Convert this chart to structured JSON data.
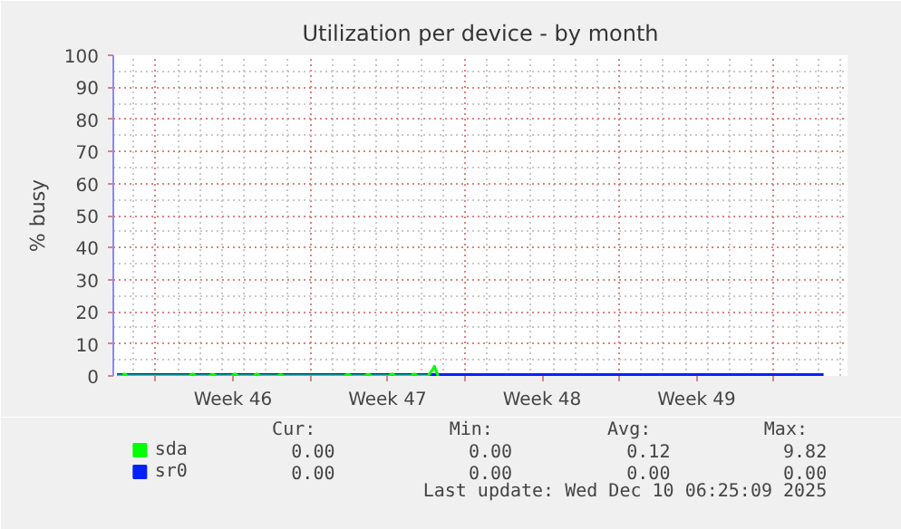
{
  "chart_data": {
    "type": "line",
    "title": "Utilization per device - by month",
    "ylabel": "% busy",
    "xlim": [
      "2025-11-08T02:00",
      "2025-12-11T08:00"
    ],
    "xticks": [
      {
        "value": "2025-11-10",
        "label": null
      },
      {
        "value": "2025-11-13T12:00",
        "label": "Week 46"
      },
      {
        "value": "2025-11-17",
        "label": null
      },
      {
        "value": "2025-11-20T12:00",
        "label": "Week 47"
      },
      {
        "value": "2025-11-24",
        "label": null
      },
      {
        "value": "2025-11-27T12:00",
        "label": "Week 48"
      },
      {
        "value": "2025-12-01",
        "label": null
      },
      {
        "value": "2025-12-04T12:00",
        "label": "Week 49"
      },
      {
        "value": "2025-12-08",
        "label": null
      }
    ],
    "ylim": [
      0,
      100
    ],
    "yticks": [
      0,
      10,
      20,
      30,
      40,
      50,
      60,
      70,
      80,
      90,
      100
    ],
    "grid": true,
    "legend": "bottom left",
    "series": [
      {
        "name": "sda",
        "color": "#00ff00",
        "x": [
          "2025-11-08T06:00",
          "2025-11-08T12:00",
          "2025-11-08T14:00",
          "2025-11-08T18:00",
          "2025-11-11T12:00",
          "2025-11-11T16:00",
          "2025-11-11T20:00",
          "2025-11-12T10:00",
          "2025-11-12T14:00",
          "2025-11-12T18:00",
          "2025-11-13T10:00",
          "2025-11-13T14:00",
          "2025-11-13T18:00",
          "2025-11-14T10:00",
          "2025-11-14T14:00",
          "2025-11-14T18:00",
          "2025-11-15T12:00",
          "2025-11-15T16:00",
          "2025-11-15T20:00",
          "2025-11-18T13:00",
          "2025-11-18T17:00",
          "2025-11-18T21:00",
          "2025-11-19T11:00",
          "2025-11-19T15:00",
          "2025-11-19T19:00",
          "2025-11-20T13:00",
          "2025-11-20T17:00",
          "2025-11-20T21:00",
          "2025-11-21T13:00",
          "2025-11-21T17:00",
          "2025-11-21T21:00",
          "2025-11-22T08:00",
          "2025-11-22T12:00",
          "2025-11-22T15:00",
          "2025-11-22T19:00"
        ],
        "values": [
          0,
          0,
          0.6,
          0,
          0,
          0.6,
          0,
          0,
          0.5,
          0,
          0,
          0.6,
          0,
          0,
          0.6,
          0,
          0,
          0.4,
          0,
          0,
          0.5,
          0,
          0,
          0.5,
          0,
          0,
          0.6,
          0,
          0,
          0.6,
          0,
          0,
          1.5,
          3,
          0
        ]
      },
      {
        "name": "sr0",
        "color": "#0022ff",
        "x": [
          "2025-11-08T06:00",
          "2025-12-10T06:00"
        ],
        "values": [
          0,
          0
        ]
      }
    ],
    "annotations": [
      "Cur:",
      "Min:",
      "Avg:",
      "Max:",
      "0.00",
      "0.00",
      "0.12",
      "9.82",
      "0.00",
      "0.00",
      "0.00",
      "0.00",
      "Last update: Wed Dec 10 06:25:09 2025"
    ]
  }
}
